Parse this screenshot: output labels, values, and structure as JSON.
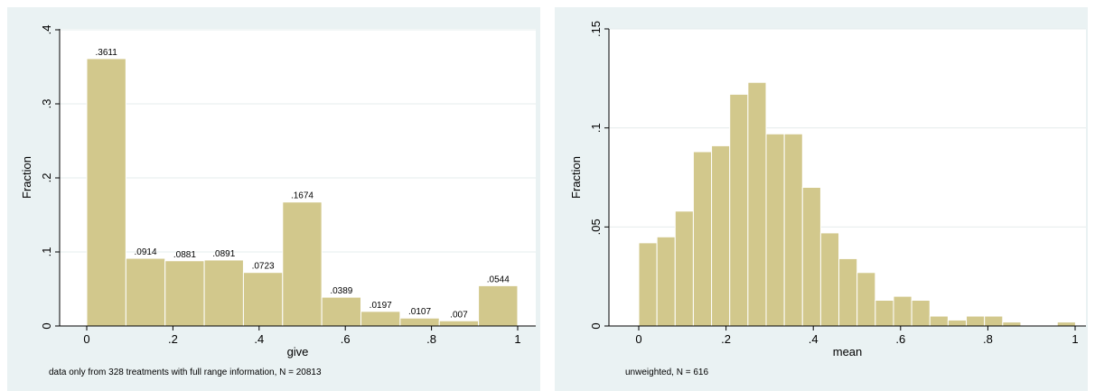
{
  "chart_data": [
    {
      "type": "bar",
      "ylabel": "Fraction",
      "xlabel": "give",
      "note": "data only from 328 treatments with full range information, N = 20813",
      "xlim": [
        0,
        1
      ],
      "ylim": [
        0,
        0.4
      ],
      "bin_width": 0.0909,
      "yticks": [
        0,
        0.1,
        0.2,
        0.3,
        0.4
      ],
      "ytick_labels": [
        "0",
        ".1",
        ".2",
        ".3",
        ".4"
      ],
      "xticks": [
        0,
        0.2,
        0.4,
        0.6,
        0.8,
        1
      ],
      "xtick_labels": [
        "0",
        ".2",
        ".4",
        ".6",
        ".8",
        "1"
      ],
      "values": [
        0.3611,
        0.0914,
        0.0881,
        0.0891,
        0.0723,
        0.1674,
        0.0389,
        0.0197,
        0.0107,
        0.007,
        0.0544
      ],
      "labels": [
        ".3611",
        ".0914",
        ".0881",
        ".0891",
        ".0723",
        ".1674",
        ".0389",
        ".0197",
        ".0107",
        ".007",
        ".0544"
      ],
      "grid": true
    },
    {
      "type": "bar",
      "ylabel": "Fraction",
      "xlabel": "mean",
      "note": "unweighted, N = 616",
      "xlim": [
        0,
        1
      ],
      "ylim": [
        0,
        0.15
      ],
      "bin_width": 0.0417,
      "yticks": [
        0,
        0.05,
        0.1,
        0.15
      ],
      "ytick_labels": [
        "0",
        ".05",
        ".1",
        ".15"
      ],
      "xticks": [
        0,
        0.2,
        0.4,
        0.6,
        0.8,
        1
      ],
      "xtick_labels": [
        "0",
        ".2",
        ".4",
        ".6",
        ".8",
        "1"
      ],
      "values": [
        0.042,
        0.045,
        0.058,
        0.088,
        0.091,
        0.117,
        0.123,
        0.097,
        0.097,
        0.07,
        0.047,
        0.034,
        0.027,
        0.013,
        0.015,
        0.013,
        0.005,
        0.003,
        0.005,
        0.005,
        0.002,
        0,
        0,
        0.002
      ],
      "grid": true
    }
  ],
  "colors": {
    "bar_fill": "#d2c88c",
    "bar_stroke": "#ffffff",
    "panel_bg": "#eaf2f3",
    "plot_bg": "#ffffff",
    "grid": "#e6ecec"
  }
}
